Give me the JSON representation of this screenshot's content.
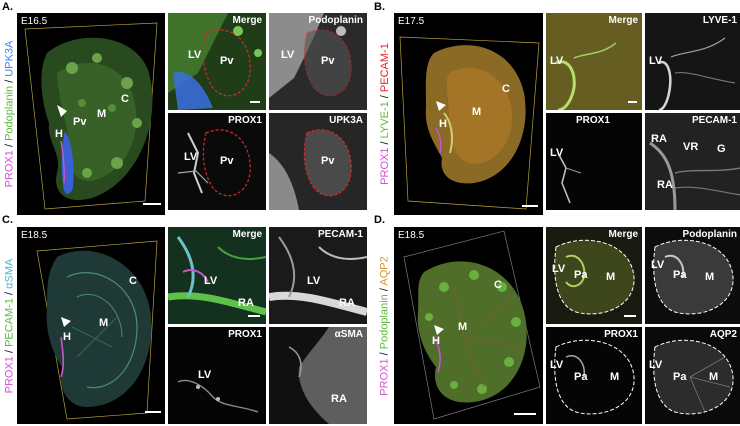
{
  "panels": [
    {
      "letter": "A.",
      "stage": "E16.5",
      "stains": [
        {
          "text": "PROX1",
          "color": "magenta"
        },
        {
          "text": " / ",
          "color": "black"
        },
        {
          "text": "Podoplanin",
          "color": "green"
        },
        {
          "text": " / ",
          "color": "black"
        },
        {
          "text": "UPK3A",
          "color": "blue"
        }
      ],
      "main_labels": [
        "C",
        "M",
        "Pv",
        "H"
      ],
      "insets": [
        {
          "title": "Merge",
          "labels": [
            "LV",
            "Pv"
          ]
        },
        {
          "title": "Podoplanin",
          "labels": [
            "LV",
            "Pv"
          ]
        },
        {
          "title": "PROX1",
          "labels": [
            "LV",
            "Pv"
          ]
        },
        {
          "title": "UPK3A",
          "labels": [
            "Pv"
          ]
        }
      ]
    },
    {
      "letter": "B.",
      "stage": "E17.5",
      "stains": [
        {
          "text": "PROX1",
          "color": "magenta"
        },
        {
          "text": " / ",
          "color": "black"
        },
        {
          "text": "LYVE-1",
          "color": "green"
        },
        {
          "text": " / ",
          "color": "black"
        },
        {
          "text": "PECAM-1",
          "color": "red"
        }
      ],
      "main_labels": [
        "C",
        "M",
        "H"
      ],
      "insets": [
        {
          "title": "Merge",
          "labels": [
            "LV"
          ]
        },
        {
          "title": "LYVE-1",
          "labels": [
            "LV"
          ]
        },
        {
          "title": "PROX1",
          "labels": [
            "LV"
          ]
        },
        {
          "title": "PECAM-1",
          "labels": [
            "RA",
            "VR",
            "G",
            "RA"
          ]
        }
      ]
    },
    {
      "letter": "C.",
      "stage": "E18.5",
      "stains": [
        {
          "text": "PROX1",
          "color": "magenta"
        },
        {
          "text": " / ",
          "color": "black"
        },
        {
          "text": "PECAM-1",
          "color": "green"
        },
        {
          "text": " / ",
          "color": "black"
        },
        {
          "text": "αSMA",
          "color": "cyan"
        }
      ],
      "main_labels": [
        "C",
        "M",
        "H"
      ],
      "insets": [
        {
          "title": "Merge",
          "labels": [
            "LV",
            "RA"
          ]
        },
        {
          "title": "PECAM-1",
          "labels": [
            "LV",
            "RA"
          ]
        },
        {
          "title": "PROX1",
          "labels": [
            "LV"
          ]
        },
        {
          "title": "αSMA",
          "labels": [
            "RA"
          ]
        }
      ]
    },
    {
      "letter": "D.",
      "stage": "E18.5",
      "stains": [
        {
          "text": "PROX1",
          "color": "magenta"
        },
        {
          "text": " / ",
          "color": "black"
        },
        {
          "text": "Podoplanin",
          "color": "green"
        },
        {
          "text": " / ",
          "color": "black"
        },
        {
          "text": "AQP2",
          "color": "orange"
        }
      ],
      "main_labels": [
        "C",
        "M",
        "H"
      ],
      "insets": [
        {
          "title": "Merge",
          "labels": [
            "LV",
            "Pa",
            "M"
          ]
        },
        {
          "title": "Podoplanin",
          "labels": [
            "LV",
            "Pa",
            "M"
          ]
        },
        {
          "title": "PROX1",
          "labels": [
            "LV",
            "Pa",
            "M"
          ]
        },
        {
          "title": "AQP2",
          "labels": [
            "LV",
            "Pa",
            "M"
          ]
        }
      ]
    }
  ]
}
